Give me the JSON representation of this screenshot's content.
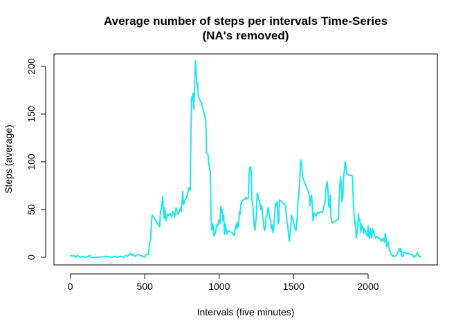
{
  "chart_data": {
    "type": "line",
    "title": "Average number of steps per intervals Time-Series",
    "subtitle": "(NA's removed)",
    "xlabel": "Intervals (five minutes)",
    "ylabel": "Steps (average)",
    "xlim": [
      -110,
      2465
    ],
    "ylim": [
      -8,
      213
    ],
    "xticks": [
      0,
      500,
      1000,
      1500,
      2000
    ],
    "yticks": [
      0,
      50,
      100,
      150,
      200
    ],
    "grid": false,
    "series_color": "#1EE6EE",
    "points": [
      [
        0,
        2
      ],
      [
        15,
        1
      ],
      [
        25,
        2
      ],
      [
        35,
        0
      ],
      [
        45,
        2
      ],
      [
        55,
        1
      ],
      [
        70,
        0
      ],
      [
        80,
        1
      ],
      [
        100,
        0
      ],
      [
        120,
        1
      ],
      [
        130,
        2
      ],
      [
        140,
        0
      ],
      [
        200,
        0
      ],
      [
        240,
        1
      ],
      [
        280,
        0
      ],
      [
        300,
        1
      ],
      [
        320,
        0
      ],
      [
        340,
        1
      ],
      [
        355,
        0
      ],
      [
        375,
        2
      ],
      [
        385,
        1
      ],
      [
        400,
        4
      ],
      [
        410,
        2
      ],
      [
        420,
        3
      ],
      [
        435,
        1
      ],
      [
        455,
        3
      ],
      [
        470,
        2
      ],
      [
        500,
        0
      ],
      [
        505,
        2
      ],
      [
        515,
        3
      ],
      [
        525,
        3
      ],
      [
        530,
        12
      ],
      [
        540,
        20
      ],
      [
        545,
        37
      ],
      [
        550,
        44
      ],
      [
        560,
        42
      ],
      [
        575,
        38
      ],
      [
        585,
        35
      ],
      [
        600,
        32
      ],
      [
        605,
        47
      ],
      [
        615,
        55
      ],
      [
        620,
        64
      ],
      [
        625,
        50
      ],
      [
        630,
        41
      ],
      [
        635,
        52
      ],
      [
        640,
        40
      ],
      [
        645,
        38
      ],
      [
        650,
        45
      ],
      [
        660,
        44
      ],
      [
        670,
        46
      ],
      [
        680,
        42
      ],
      [
        690,
        48
      ],
      [
        700,
        42
      ],
      [
        710,
        52
      ],
      [
        720,
        45
      ],
      [
        730,
        47
      ],
      [
        740,
        52
      ],
      [
        745,
        48
      ],
      [
        755,
        69
      ],
      [
        760,
        55
      ],
      [
        770,
        60
      ],
      [
        780,
        62
      ],
      [
        790,
        68
      ],
      [
        795,
        73
      ],
      [
        805,
        70
      ],
      [
        810,
        130
      ],
      [
        815,
        168
      ],
      [
        820,
        165
      ],
      [
        825,
        172
      ],
      [
        830,
        155
      ],
      [
        840,
        206
      ],
      [
        845,
        196
      ],
      [
        850,
        180
      ],
      [
        855,
        183
      ],
      [
        860,
        168
      ],
      [
        880,
        162
      ],
      [
        900,
        150
      ],
      [
        910,
        143
      ],
      [
        915,
        110
      ],
      [
        925,
        107
      ],
      [
        930,
        97
      ],
      [
        940,
        90
      ],
      [
        945,
        40
      ],
      [
        950,
        28
      ],
      [
        955,
        35
      ],
      [
        960,
        32
      ],
      [
        965,
        22
      ],
      [
        975,
        26
      ],
      [
        985,
        34
      ],
      [
        990,
        33
      ],
      [
        995,
        37
      ],
      [
        1000,
        40
      ],
      [
        1005,
        35
      ],
      [
        1010,
        53
      ],
      [
        1015,
        47
      ],
      [
        1020,
        50
      ],
      [
        1025,
        38
      ],
      [
        1030,
        44
      ],
      [
        1035,
        24
      ],
      [
        1040,
        35
      ],
      [
        1045,
        30
      ],
      [
        1050,
        24
      ],
      [
        1060,
        28
      ],
      [
        1070,
        27
      ],
      [
        1080,
        26
      ],
      [
        1090,
        25
      ],
      [
        1100,
        23
      ],
      [
        1110,
        32
      ],
      [
        1115,
        35
      ],
      [
        1120,
        30
      ],
      [
        1125,
        37
      ],
      [
        1130,
        32
      ],
      [
        1135,
        48
      ],
      [
        1140,
        45
      ],
      [
        1145,
        55
      ],
      [
        1150,
        58
      ],
      [
        1160,
        60
      ],
      [
        1175,
        61
      ],
      [
        1180,
        63
      ],
      [
        1185,
        61
      ],
      [
        1195,
        62
      ],
      [
        1200,
        85
      ],
      [
        1205,
        94
      ],
      [
        1210,
        95
      ],
      [
        1215,
        90
      ],
      [
        1220,
        60
      ],
      [
        1225,
        55
      ],
      [
        1230,
        45
      ],
      [
        1235,
        32
      ],
      [
        1240,
        28
      ],
      [
        1245,
        36
      ],
      [
        1250,
        45
      ],
      [
        1255,
        67
      ],
      [
        1260,
        65
      ],
      [
        1265,
        60
      ],
      [
        1270,
        59
      ],
      [
        1275,
        55
      ],
      [
        1280,
        50
      ],
      [
        1285,
        54
      ],
      [
        1290,
        48
      ],
      [
        1295,
        38
      ],
      [
        1300,
        31
      ],
      [
        1305,
        28
      ],
      [
        1310,
        32
      ],
      [
        1315,
        42
      ],
      [
        1320,
        44
      ],
      [
        1325,
        50
      ],
      [
        1330,
        52
      ],
      [
        1335,
        45
      ],
      [
        1340,
        40
      ],
      [
        1345,
        38
      ],
      [
        1350,
        30
      ],
      [
        1355,
        34
      ],
      [
        1360,
        26
      ],
      [
        1365,
        28
      ],
      [
        1370,
        38
      ],
      [
        1375,
        52
      ],
      [
        1380,
        57
      ],
      [
        1385,
        54
      ],
      [
        1390,
        58
      ],
      [
        1395,
        35
      ],
      [
        1400,
        37
      ],
      [
        1405,
        60
      ],
      [
        1415,
        59
      ],
      [
        1420,
        58
      ],
      [
        1430,
        57
      ],
      [
        1440,
        55
      ],
      [
        1445,
        54
      ],
      [
        1450,
        45
      ],
      [
        1455,
        37
      ],
      [
        1460,
        33
      ],
      [
        1465,
        25
      ],
      [
        1470,
        17
      ],
      [
        1475,
        24
      ],
      [
        1480,
        30
      ],
      [
        1485,
        44
      ],
      [
        1490,
        42
      ],
      [
        1495,
        40
      ],
      [
        1500,
        36
      ],
      [
        1505,
        32
      ],
      [
        1510,
        30
      ],
      [
        1515,
        28
      ],
      [
        1520,
        34
      ],
      [
        1525,
        45
      ],
      [
        1530,
        60
      ],
      [
        1535,
        65
      ],
      [
        1540,
        80
      ],
      [
        1545,
        95
      ],
      [
        1550,
        102
      ],
      [
        1555,
        96
      ],
      [
        1560,
        84
      ],
      [
        1575,
        78
      ],
      [
        1590,
        72
      ],
      [
        1600,
        68
      ],
      [
        1605,
        64
      ],
      [
        1610,
        54
      ],
      [
        1615,
        62
      ],
      [
        1620,
        65
      ],
      [
        1625,
        55
      ],
      [
        1630,
        38
      ],
      [
        1635,
        45
      ],
      [
        1640,
        46
      ],
      [
        1645,
        45
      ],
      [
        1650,
        43
      ],
      [
        1660,
        47
      ],
      [
        1670,
        46
      ],
      [
        1680,
        48
      ],
      [
        1690,
        47
      ],
      [
        1700,
        50
      ],
      [
        1705,
        55
      ],
      [
        1710,
        58
      ],
      [
        1715,
        65
      ],
      [
        1720,
        77
      ],
      [
        1725,
        79
      ],
      [
        1730,
        70
      ],
      [
        1735,
        55
      ],
      [
        1740,
        52
      ],
      [
        1745,
        65
      ],
      [
        1750,
        42
      ],
      [
        1755,
        38
      ],
      [
        1760,
        36
      ],
      [
        1780,
        38
      ],
      [
        1800,
        40
      ],
      [
        1805,
        60
      ],
      [
        1810,
        75
      ],
      [
        1815,
        85
      ],
      [
        1820,
        75
      ],
      [
        1825,
        58
      ],
      [
        1830,
        62
      ],
      [
        1835,
        82
      ],
      [
        1840,
        90
      ],
      [
        1845,
        100
      ],
      [
        1850,
        96
      ],
      [
        1855,
        88
      ],
      [
        1870,
        86
      ],
      [
        1885,
        86
      ],
      [
        1895,
        85
      ],
      [
        1900,
        62
      ],
      [
        1905,
        48
      ],
      [
        1910,
        35
      ],
      [
        1915,
        38
      ],
      [
        1920,
        20
      ],
      [
        1925,
        25
      ],
      [
        1930,
        30
      ],
      [
        1935,
        46
      ],
      [
        1940,
        38
      ],
      [
        1945,
        40
      ],
      [
        1950,
        26
      ],
      [
        1955,
        35
      ],
      [
        1960,
        30
      ],
      [
        1965,
        32
      ],
      [
        1970,
        25
      ],
      [
        1975,
        30
      ],
      [
        1980,
        28
      ],
      [
        1985,
        25
      ],
      [
        1990,
        24
      ],
      [
        1995,
        22
      ],
      [
        2000,
        33
      ],
      [
        2005,
        22
      ],
      [
        2010,
        20
      ],
      [
        2015,
        30
      ],
      [
        2020,
        26
      ],
      [
        2025,
        20
      ],
      [
        2030,
        30
      ],
      [
        2035,
        27
      ],
      [
        2040,
        24
      ],
      [
        2045,
        22
      ],
      [
        2050,
        20
      ],
      [
        2055,
        21
      ],
      [
        2060,
        22
      ],
      [
        2065,
        21
      ],
      [
        2070,
        20
      ],
      [
        2075,
        19
      ],
      [
        2080,
        20
      ],
      [
        2085,
        18
      ],
      [
        2090,
        17
      ],
      [
        2095,
        19
      ],
      [
        2100,
        20
      ],
      [
        2105,
        17
      ],
      [
        2110,
        16
      ],
      [
        2115,
        25
      ],
      [
        2120,
        20
      ],
      [
        2125,
        11
      ],
      [
        2130,
        13
      ],
      [
        2135,
        16
      ],
      [
        2140,
        10
      ],
      [
        2145,
        7
      ],
      [
        2150,
        6
      ],
      [
        2155,
        3
      ],
      [
        2160,
        2
      ],
      [
        2165,
        1
      ],
      [
        2170,
        2
      ],
      [
        2175,
        1
      ],
      [
        2180,
        1
      ],
      [
        2190,
        2
      ],
      [
        2200,
        5
      ],
      [
        2205,
        8
      ],
      [
        2210,
        9
      ],
      [
        2215,
        6
      ],
      [
        2220,
        9
      ],
      [
        2225,
        2
      ],
      [
        2230,
        1
      ],
      [
        2235,
        1
      ],
      [
        2240,
        5
      ],
      [
        2250,
        5
      ],
      [
        2260,
        4
      ],
      [
        2270,
        4
      ],
      [
        2280,
        3
      ],
      [
        2290,
        3
      ],
      [
        2300,
        2
      ],
      [
        2305,
        1
      ],
      [
        2310,
        0
      ],
      [
        2315,
        1
      ],
      [
        2320,
        1
      ],
      [
        2325,
        3
      ],
      [
        2330,
        5
      ],
      [
        2335,
        3
      ],
      [
        2340,
        2
      ],
      [
        2345,
        0
      ],
      [
        2350,
        1
      ],
      [
        2355,
        1
      ]
    ]
  }
}
